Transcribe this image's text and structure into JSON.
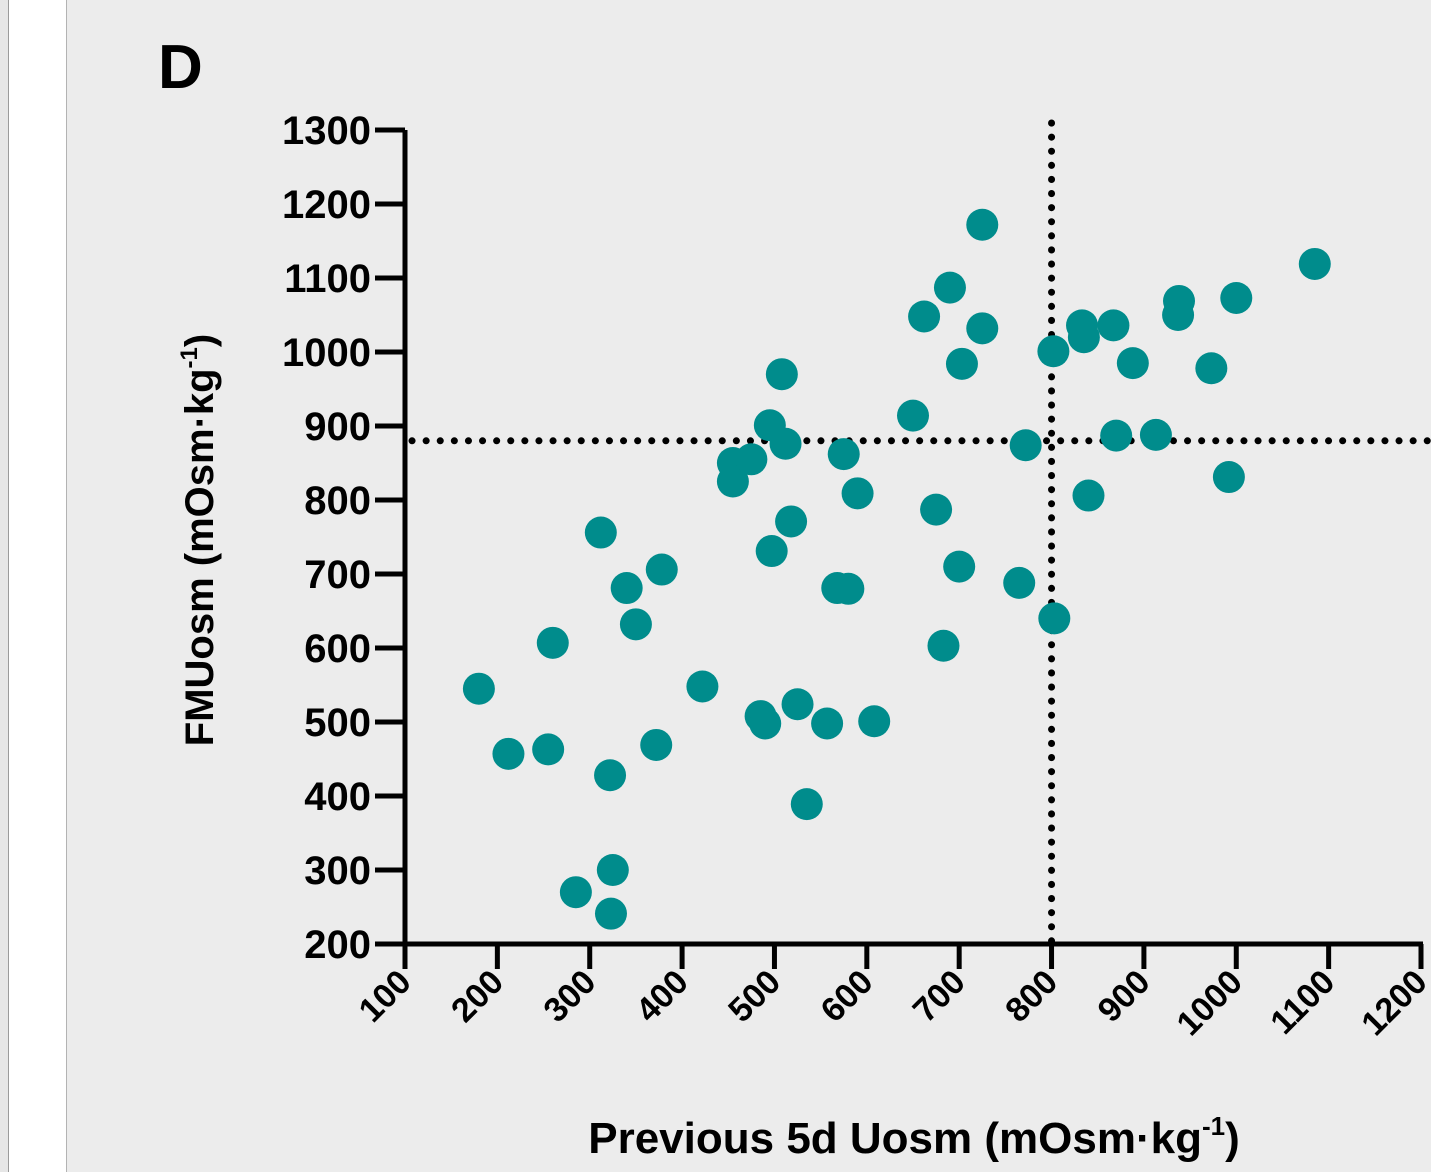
{
  "panel_label": "D",
  "chart_data": {
    "type": "scatter",
    "title": "",
    "xlabel": "Previous 5d Uosm (mOsm·kg-1)",
    "xlabel_parts": {
      "main": "Previous 5d Uosm (mOsm·kg",
      "sup": "-1",
      "close": ")"
    },
    "ylabel": "FMUosm (mOsm·kg-1)",
    "ylabel_parts": {
      "main": "FMUosm (mOsm·kg",
      "sup": "-1",
      "close": ")"
    },
    "xlim": [
      100,
      1200
    ],
    "ylim": [
      200,
      1300
    ],
    "x_ticks": [
      100,
      200,
      300,
      400,
      500,
      600,
      700,
      800,
      900,
      1000,
      1100,
      1200
    ],
    "y_ticks": [
      200,
      300,
      400,
      500,
      600,
      700,
      800,
      900,
      1000,
      1100,
      1200,
      1300
    ],
    "reference_lines": {
      "vertical_x": 800,
      "horizontal_y": 880
    },
    "marker_color": "#008c8c",
    "grid": false,
    "points": [
      {
        "x": 180,
        "y": 545
      },
      {
        "x": 212,
        "y": 457
      },
      {
        "x": 255,
        "y": 463
      },
      {
        "x": 260,
        "y": 607
      },
      {
        "x": 285,
        "y": 270
      },
      {
        "x": 312,
        "y": 756
      },
      {
        "x": 322,
        "y": 428
      },
      {
        "x": 323,
        "y": 241
      },
      {
        "x": 325,
        "y": 300
      },
      {
        "x": 340,
        "y": 681
      },
      {
        "x": 350,
        "y": 632
      },
      {
        "x": 372,
        "y": 469
      },
      {
        "x": 378,
        "y": 706
      },
      {
        "x": 422,
        "y": 548
      },
      {
        "x": 455,
        "y": 850
      },
      {
        "x": 455,
        "y": 825
      },
      {
        "x": 475,
        "y": 855
      },
      {
        "x": 485,
        "y": 508
      },
      {
        "x": 490,
        "y": 498
      },
      {
        "x": 495,
        "y": 901
      },
      {
        "x": 497,
        "y": 731
      },
      {
        "x": 508,
        "y": 970
      },
      {
        "x": 512,
        "y": 876
      },
      {
        "x": 518,
        "y": 771
      },
      {
        "x": 525,
        "y": 524
      },
      {
        "x": 535,
        "y": 389
      },
      {
        "x": 557,
        "y": 498
      },
      {
        "x": 568,
        "y": 681
      },
      {
        "x": 575,
        "y": 862
      },
      {
        "x": 580,
        "y": 680
      },
      {
        "x": 590,
        "y": 809
      },
      {
        "x": 608,
        "y": 501
      },
      {
        "x": 650,
        "y": 914
      },
      {
        "x": 662,
        "y": 1048
      },
      {
        "x": 675,
        "y": 787
      },
      {
        "x": 683,
        "y": 603
      },
      {
        "x": 690,
        "y": 1087
      },
      {
        "x": 700,
        "y": 710
      },
      {
        "x": 703,
        "y": 984
      },
      {
        "x": 725,
        "y": 1032
      },
      {
        "x": 725,
        "y": 1172
      },
      {
        "x": 765,
        "y": 688
      },
      {
        "x": 772,
        "y": 874
      },
      {
        "x": 803,
        "y": 640
      },
      {
        "x": 802,
        "y": 1001
      },
      {
        "x": 833,
        "y": 1036
      },
      {
        "x": 835,
        "y": 1020
      },
      {
        "x": 840,
        "y": 806
      },
      {
        "x": 867,
        "y": 1036
      },
      {
        "x": 870,
        "y": 887
      },
      {
        "x": 888,
        "y": 985
      },
      {
        "x": 913,
        "y": 888
      },
      {
        "x": 938,
        "y": 1069
      },
      {
        "x": 937,
        "y": 1050
      },
      {
        "x": 973,
        "y": 978
      },
      {
        "x": 992,
        "y": 831
      },
      {
        "x": 1000,
        "y": 1073
      },
      {
        "x": 1085,
        "y": 1119
      }
    ]
  }
}
